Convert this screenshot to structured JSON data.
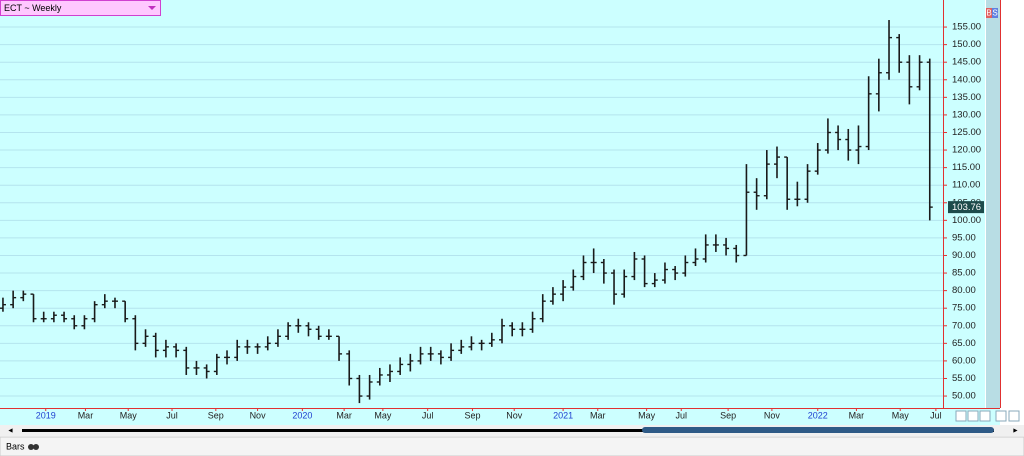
{
  "chart_data": {
    "type": "ohlc",
    "title": "ECT ~ Weekly",
    "color": "#1a1a1a",
    "grid": true,
    "open": [
      75,
      76,
      78,
      79,
      72,
      72,
      73,
      72,
      70,
      72,
      76,
      77,
      77,
      72,
      65,
      67,
      63,
      64,
      63,
      58,
      58,
      57,
      61,
      61,
      64,
      64,
      64,
      65,
      67,
      70,
      70,
      69,
      67,
      67,
      62,
      55,
      50,
      54,
      56,
      57,
      59,
      60,
      62,
      62,
      61,
      63,
      64,
      65,
      65,
      66,
      70,
      69,
      69,
      72,
      77,
      79,
      81,
      84,
      88,
      88,
      85,
      79,
      84,
      89,
      82,
      83,
      86,
      85,
      88,
      89,
      93,
      93,
      92,
      90,
      108,
      107,
      116,
      118,
      106,
      106,
      114,
      120,
      125,
      123,
      120,
      121,
      136,
      142,
      152,
      145,
      138,
      145
    ],
    "high": [
      78,
      80,
      80,
      79,
      74,
      74,
      74,
      73,
      73,
      77,
      79,
      78,
      77,
      73,
      69,
      68,
      66,
      65,
      64,
      60,
      59,
      62,
      63,
      66,
      66,
      65,
      67,
      69,
      71,
      72,
      71,
      70,
      69,
      67,
      63,
      56,
      56,
      58,
      59,
      61,
      62,
      64,
      64,
      63,
      65,
      66,
      67,
      66,
      68,
      72,
      71,
      71,
      74,
      79,
      81,
      83,
      86,
      90,
      92,
      89,
      86,
      86,
      91,
      90,
      85,
      88,
      87,
      90,
      92,
      96,
      96,
      95,
      93,
      116,
      112,
      120,
      121,
      118,
      111,
      116,
      122,
      129,
      127,
      126,
      127,
      141,
      146,
      157,
      153,
      147,
      147,
      146
    ],
    "low": [
      74,
      75,
      77,
      71,
      71,
      71,
      71,
      69,
      69,
      71,
      75,
      75,
      71,
      63,
      64,
      61,
      61,
      61,
      56,
      56,
      55,
      56,
      59,
      60,
      62,
      62,
      63,
      64,
      66,
      68,
      67,
      66,
      66,
      60,
      53,
      48,
      49,
      53,
      54,
      56,
      57,
      59,
      60,
      59,
      60,
      62,
      63,
      63,
      64,
      65,
      67,
      67,
      68,
      71,
      76,
      77,
      80,
      83,
      85,
      82,
      76,
      78,
      83,
      81,
      81,
      82,
      83,
      84,
      87,
      88,
      91,
      90,
      88,
      90,
      103,
      106,
      112,
      103,
      104,
      105,
      113,
      119,
      120,
      117,
      116,
      120,
      131,
      140,
      142,
      133,
      137,
      100
    ],
    "close": [
      76,
      78,
      79,
      72,
      72,
      73,
      72,
      70,
      72,
      76,
      77,
      77,
      72,
      65,
      67,
      63,
      64,
      63,
      58,
      58,
      57,
      61,
      61,
      64,
      64,
      64,
      65,
      67,
      70,
      70,
      69,
      67,
      67,
      62,
      55,
      50,
      54,
      56,
      57,
      59,
      60,
      62,
      62,
      61,
      63,
      64,
      65,
      65,
      66,
      70,
      69,
      69,
      72,
      77,
      79,
      81,
      84,
      88,
      88,
      85,
      79,
      84,
      89,
      82,
      83,
      86,
      85,
      88,
      89,
      93,
      93,
      92,
      90,
      108,
      107,
      116,
      118,
      106,
      106,
      114,
      120,
      125,
      123,
      120,
      121,
      136,
      142,
      152,
      145,
      138,
      145,
      103.76
    ],
    "last_value": 103.76,
    "ylim": [
      46.6,
      162.7
    ],
    "yticks": [
      {
        "value": 50,
        "label": "50.00"
      },
      {
        "value": 55,
        "label": "55.00"
      },
      {
        "value": 60,
        "label": "60.00"
      },
      {
        "value": 65,
        "label": "65.00"
      },
      {
        "value": 70,
        "label": "70.00"
      },
      {
        "value": 75,
        "label": "75.00"
      },
      {
        "value": 80,
        "label": "80.00"
      },
      {
        "value": 85,
        "label": "85.00"
      },
      {
        "value": 90,
        "label": "90.00"
      },
      {
        "value": 95,
        "label": "95.00"
      },
      {
        "value": 100,
        "label": "100.00"
      },
      {
        "value": 105,
        "label": "105.00"
      },
      {
        "value": 110,
        "label": "110.00"
      },
      {
        "value": 115,
        "label": "115.00"
      },
      {
        "value": 120,
        "label": "120.00"
      },
      {
        "value": 125,
        "label": "125.00"
      },
      {
        "value": 130,
        "label": "130.00"
      },
      {
        "value": 135,
        "label": "135.00"
      },
      {
        "value": 140,
        "label": "140.00"
      },
      {
        "value": 145,
        "label": "145.00"
      },
      {
        "value": 150,
        "label": "150.00"
      },
      {
        "value": 155,
        "label": "155.00"
      }
    ],
    "xlim": [
      -0.29,
      92.3
    ],
    "xticks": [
      {
        "value": 4.2,
        "label": "2019"
      },
      {
        "value": 8.1,
        "label": "Mar"
      },
      {
        "value": 12.3,
        "label": "May"
      },
      {
        "value": 16.6,
        "label": "Jul"
      },
      {
        "value": 20.9,
        "label": "Sep"
      },
      {
        "value": 25.0,
        "label": "Nov"
      },
      {
        "value": 29.4,
        "label": "2020"
      },
      {
        "value": 33.5,
        "label": "Mar"
      },
      {
        "value": 37.3,
        "label": "May"
      },
      {
        "value": 41.7,
        "label": "Jul"
      },
      {
        "value": 46.1,
        "label": "Sep"
      },
      {
        "value": 50.2,
        "label": "Nov"
      },
      {
        "value": 55.0,
        "label": "2021"
      },
      {
        "value": 58.4,
        "label": "Mar"
      },
      {
        "value": 63.2,
        "label": "May"
      },
      {
        "value": 66.6,
        "label": "Jul"
      },
      {
        "value": 71.2,
        "label": "Sep"
      },
      {
        "value": 75.5,
        "label": "Nov"
      },
      {
        "value": 80.0,
        "label": "2022"
      },
      {
        "value": 83.8,
        "label": "Mar"
      },
      {
        "value": 88.1,
        "label": "May"
      },
      {
        "value": 91.6,
        "label": "Jul"
      }
    ]
  },
  "ui": {
    "buy": "B",
    "sell": "S",
    "chart_style": "Bars"
  }
}
